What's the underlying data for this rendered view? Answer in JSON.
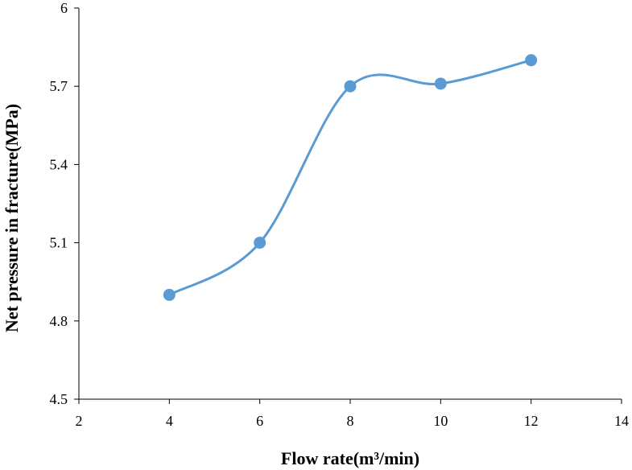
{
  "chart_data": {
    "type": "line",
    "title": "",
    "xlabel": "Flow rate(m³/min)",
    "ylabel": "Net pressure in fracture(MPa)",
    "xlim": [
      2,
      14
    ],
    "ylim": [
      4.5,
      6
    ],
    "xticks": [
      2,
      4,
      6,
      8,
      10,
      12,
      14
    ],
    "yticks": [
      4.5,
      4.8,
      5.1,
      5.4,
      5.7,
      6
    ],
    "xtick_labels": [
      "2",
      "4",
      "6",
      "8",
      "10",
      "12",
      "14"
    ],
    "ytick_labels": [
      "4.5",
      "4.8",
      "5.1",
      "5.4",
      "5.7",
      "6"
    ],
    "grid": false,
    "smooth": true,
    "markers": true,
    "series": [
      {
        "x": [
          4,
          6,
          8,
          10,
          12
        ],
        "values": [
          4.9,
          5.1,
          5.7,
          5.71,
          5.8
        ],
        "color": "#5b9bd5"
      }
    ]
  }
}
